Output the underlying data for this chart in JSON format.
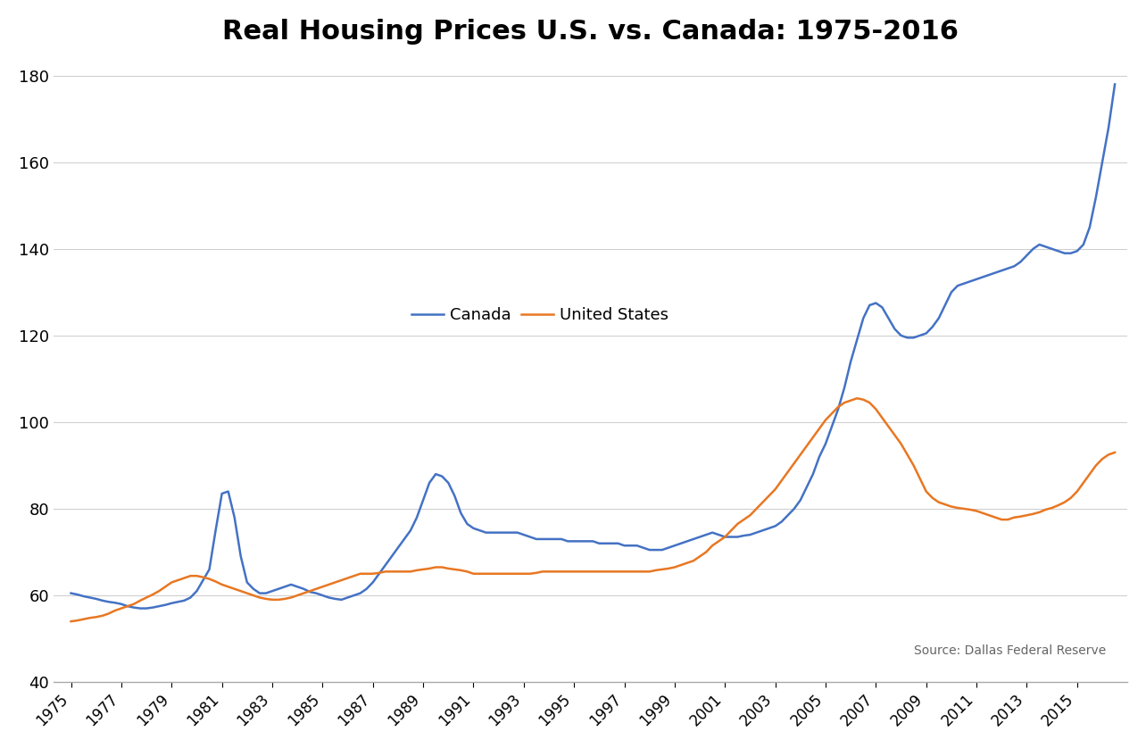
{
  "title": "Real Housing Prices U.S. vs. Canada: 1975-2016",
  "title_fontsize": 22,
  "title_fontweight": "bold",
  "source_text": "Source: Dallas Federal Reserve",
  "legend_labels": [
    "Canada",
    "United States"
  ],
  "canada_color": "#4472C4",
  "us_color": "#E87722",
  "line_width": 1.8,
  "ylim": [
    40,
    185
  ],
  "yticks": [
    40,
    60,
    80,
    100,
    120,
    140,
    160,
    180
  ],
  "background_color": "#FFFFFF",
  "years_q": [
    1975.0,
    1975.25,
    1975.5,
    1975.75,
    1976.0,
    1976.25,
    1976.5,
    1976.75,
    1977.0,
    1977.25,
    1977.5,
    1977.75,
    1978.0,
    1978.25,
    1978.5,
    1978.75,
    1979.0,
    1979.25,
    1979.5,
    1979.75,
    1980.0,
    1980.25,
    1980.5,
    1980.75,
    1981.0,
    1981.25,
    1981.5,
    1981.75,
    1982.0,
    1982.25,
    1982.5,
    1982.75,
    1983.0,
    1983.25,
    1983.5,
    1983.75,
    1984.0,
    1984.25,
    1984.5,
    1984.75,
    1985.0,
    1985.25,
    1985.5,
    1985.75,
    1986.0,
    1986.25,
    1986.5,
    1986.75,
    1987.0,
    1987.25,
    1987.5,
    1987.75,
    1988.0,
    1988.25,
    1988.5,
    1988.75,
    1989.0,
    1989.25,
    1989.5,
    1989.75,
    1990.0,
    1990.25,
    1990.5,
    1990.75,
    1991.0,
    1991.25,
    1991.5,
    1991.75,
    1992.0,
    1992.25,
    1992.5,
    1992.75,
    1993.0,
    1993.25,
    1993.5,
    1993.75,
    1994.0,
    1994.25,
    1994.5,
    1994.75,
    1995.0,
    1995.25,
    1995.5,
    1995.75,
    1996.0,
    1996.25,
    1996.5,
    1996.75,
    1997.0,
    1997.25,
    1997.5,
    1997.75,
    1998.0,
    1998.25,
    1998.5,
    1998.75,
    1999.0,
    1999.25,
    1999.5,
    1999.75,
    2000.0,
    2000.25,
    2000.5,
    2000.75,
    2001.0,
    2001.25,
    2001.5,
    2001.75,
    2002.0,
    2002.25,
    2002.5,
    2002.75,
    2003.0,
    2003.25,
    2003.5,
    2003.75,
    2004.0,
    2004.25,
    2004.5,
    2004.75,
    2005.0,
    2005.25,
    2005.5,
    2005.75,
    2006.0,
    2006.25,
    2006.5,
    2006.75,
    2007.0,
    2007.25,
    2007.5,
    2007.75,
    2008.0,
    2008.25,
    2008.5,
    2008.75,
    2009.0,
    2009.25,
    2009.5,
    2009.75,
    2010.0,
    2010.25,
    2010.5,
    2010.75,
    2011.0,
    2011.25,
    2011.5,
    2011.75,
    2012.0,
    2012.25,
    2012.5,
    2012.75,
    2013.0,
    2013.25,
    2013.5,
    2013.75,
    2014.0,
    2014.25,
    2014.5,
    2014.75,
    2015.0,
    2015.25,
    2015.5,
    2015.75,
    2016.0,
    2016.25,
    2016.5
  ],
  "canada": [
    60.5,
    60.2,
    59.8,
    59.5,
    59.2,
    58.8,
    58.5,
    58.3,
    58.0,
    57.5,
    57.2,
    57.0,
    57.0,
    57.2,
    57.5,
    57.8,
    58.2,
    58.5,
    58.8,
    59.5,
    61.0,
    63.5,
    66.0,
    75.0,
    83.5,
    84.0,
    78.0,
    69.0,
    63.0,
    61.5,
    60.5,
    60.5,
    61.0,
    61.5,
    62.0,
    62.5,
    62.0,
    61.5,
    60.8,
    60.5,
    60.0,
    59.5,
    59.2,
    59.0,
    59.5,
    60.0,
    60.5,
    61.5,
    63.0,
    65.0,
    67.0,
    69.0,
    71.0,
    73.0,
    75.0,
    78.0,
    82.0,
    86.0,
    88.0,
    87.5,
    86.0,
    83.0,
    79.0,
    76.5,
    75.5,
    75.0,
    74.5,
    74.5,
    74.5,
    74.5,
    74.5,
    74.5,
    74.0,
    73.5,
    73.0,
    73.0,
    73.0,
    73.0,
    73.0,
    72.5,
    72.5,
    72.5,
    72.5,
    72.5,
    72.0,
    72.0,
    72.0,
    72.0,
    71.5,
    71.5,
    71.5,
    71.0,
    70.5,
    70.5,
    70.5,
    71.0,
    71.5,
    72.0,
    72.5,
    73.0,
    73.5,
    74.0,
    74.5,
    74.0,
    73.5,
    73.5,
    73.5,
    73.8,
    74.0,
    74.5,
    75.0,
    75.5,
    76.0,
    77.0,
    78.5,
    80.0,
    82.0,
    85.0,
    88.0,
    92.0,
    95.0,
    99.0,
    103.0,
    108.0,
    114.0,
    119.0,
    124.0,
    127.0,
    127.5,
    126.5,
    124.0,
    121.5,
    120.0,
    119.5,
    119.5,
    120.0,
    120.5,
    122.0,
    124.0,
    127.0,
    130.0,
    131.5,
    132.0,
    132.5,
    133.0,
    133.5,
    134.0,
    134.5,
    135.0,
    135.5,
    136.0,
    137.0,
    138.5,
    140.0,
    141.0,
    140.5,
    140.0,
    139.5,
    139.0,
    139.0,
    139.5,
    141.0,
    145.0,
    152.0,
    160.0,
    168.0,
    178.0
  ],
  "us": [
    54.0,
    54.2,
    54.5,
    54.8,
    55.0,
    55.3,
    55.8,
    56.5,
    57.0,
    57.5,
    58.0,
    58.8,
    59.5,
    60.2,
    61.0,
    62.0,
    63.0,
    63.5,
    64.0,
    64.5,
    64.5,
    64.2,
    63.8,
    63.2,
    62.5,
    62.0,
    61.5,
    61.0,
    60.5,
    60.0,
    59.5,
    59.2,
    59.0,
    59.0,
    59.2,
    59.5,
    60.0,
    60.5,
    61.0,
    61.5,
    62.0,
    62.5,
    63.0,
    63.5,
    64.0,
    64.5,
    65.0,
    65.0,
    65.0,
    65.2,
    65.5,
    65.5,
    65.5,
    65.5,
    65.5,
    65.8,
    66.0,
    66.2,
    66.5,
    66.5,
    66.2,
    66.0,
    65.8,
    65.5,
    65.0,
    65.0,
    65.0,
    65.0,
    65.0,
    65.0,
    65.0,
    65.0,
    65.0,
    65.0,
    65.2,
    65.5,
    65.5,
    65.5,
    65.5,
    65.5,
    65.5,
    65.5,
    65.5,
    65.5,
    65.5,
    65.5,
    65.5,
    65.5,
    65.5,
    65.5,
    65.5,
    65.5,
    65.5,
    65.8,
    66.0,
    66.2,
    66.5,
    67.0,
    67.5,
    68.0,
    69.0,
    70.0,
    71.5,
    72.5,
    73.5,
    75.0,
    76.5,
    77.5,
    78.5,
    80.0,
    81.5,
    83.0,
    84.5,
    86.5,
    88.5,
    90.5,
    92.5,
    94.5,
    96.5,
    98.5,
    100.5,
    102.0,
    103.5,
    104.5,
    105.0,
    105.5,
    105.2,
    104.5,
    103.0,
    101.0,
    99.0,
    97.0,
    95.0,
    92.5,
    90.0,
    87.0,
    84.0,
    82.5,
    81.5,
    81.0,
    80.5,
    80.2,
    80.0,
    79.8,
    79.5,
    79.0,
    78.5,
    78.0,
    77.5,
    77.5,
    78.0,
    78.2,
    78.5,
    78.8,
    79.2,
    79.8,
    80.2,
    80.8,
    81.5,
    82.5,
    84.0,
    86.0,
    88.0,
    90.0,
    91.5,
    92.5,
    93.0
  ]
}
